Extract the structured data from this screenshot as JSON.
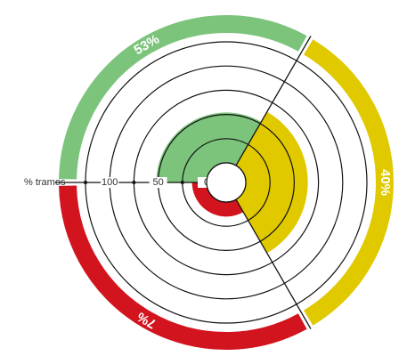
{
  "chart_data": {
    "type": "polar",
    "values": [
      53,
      40,
      7
    ],
    "value_labels": [
      "53%",
      "40%",
      "7%"
    ],
    "radial_values": [
      52,
      64,
      15
    ],
    "colors": [
      "#7cc47c",
      "#e1c900",
      "#d2141e"
    ],
    "axis_label": "% tramos",
    "ylim": [
      0,
      125
    ],
    "yticks": [
      0,
      50,
      100
    ],
    "minor_ticks": [
      25,
      75,
      125
    ]
  }
}
